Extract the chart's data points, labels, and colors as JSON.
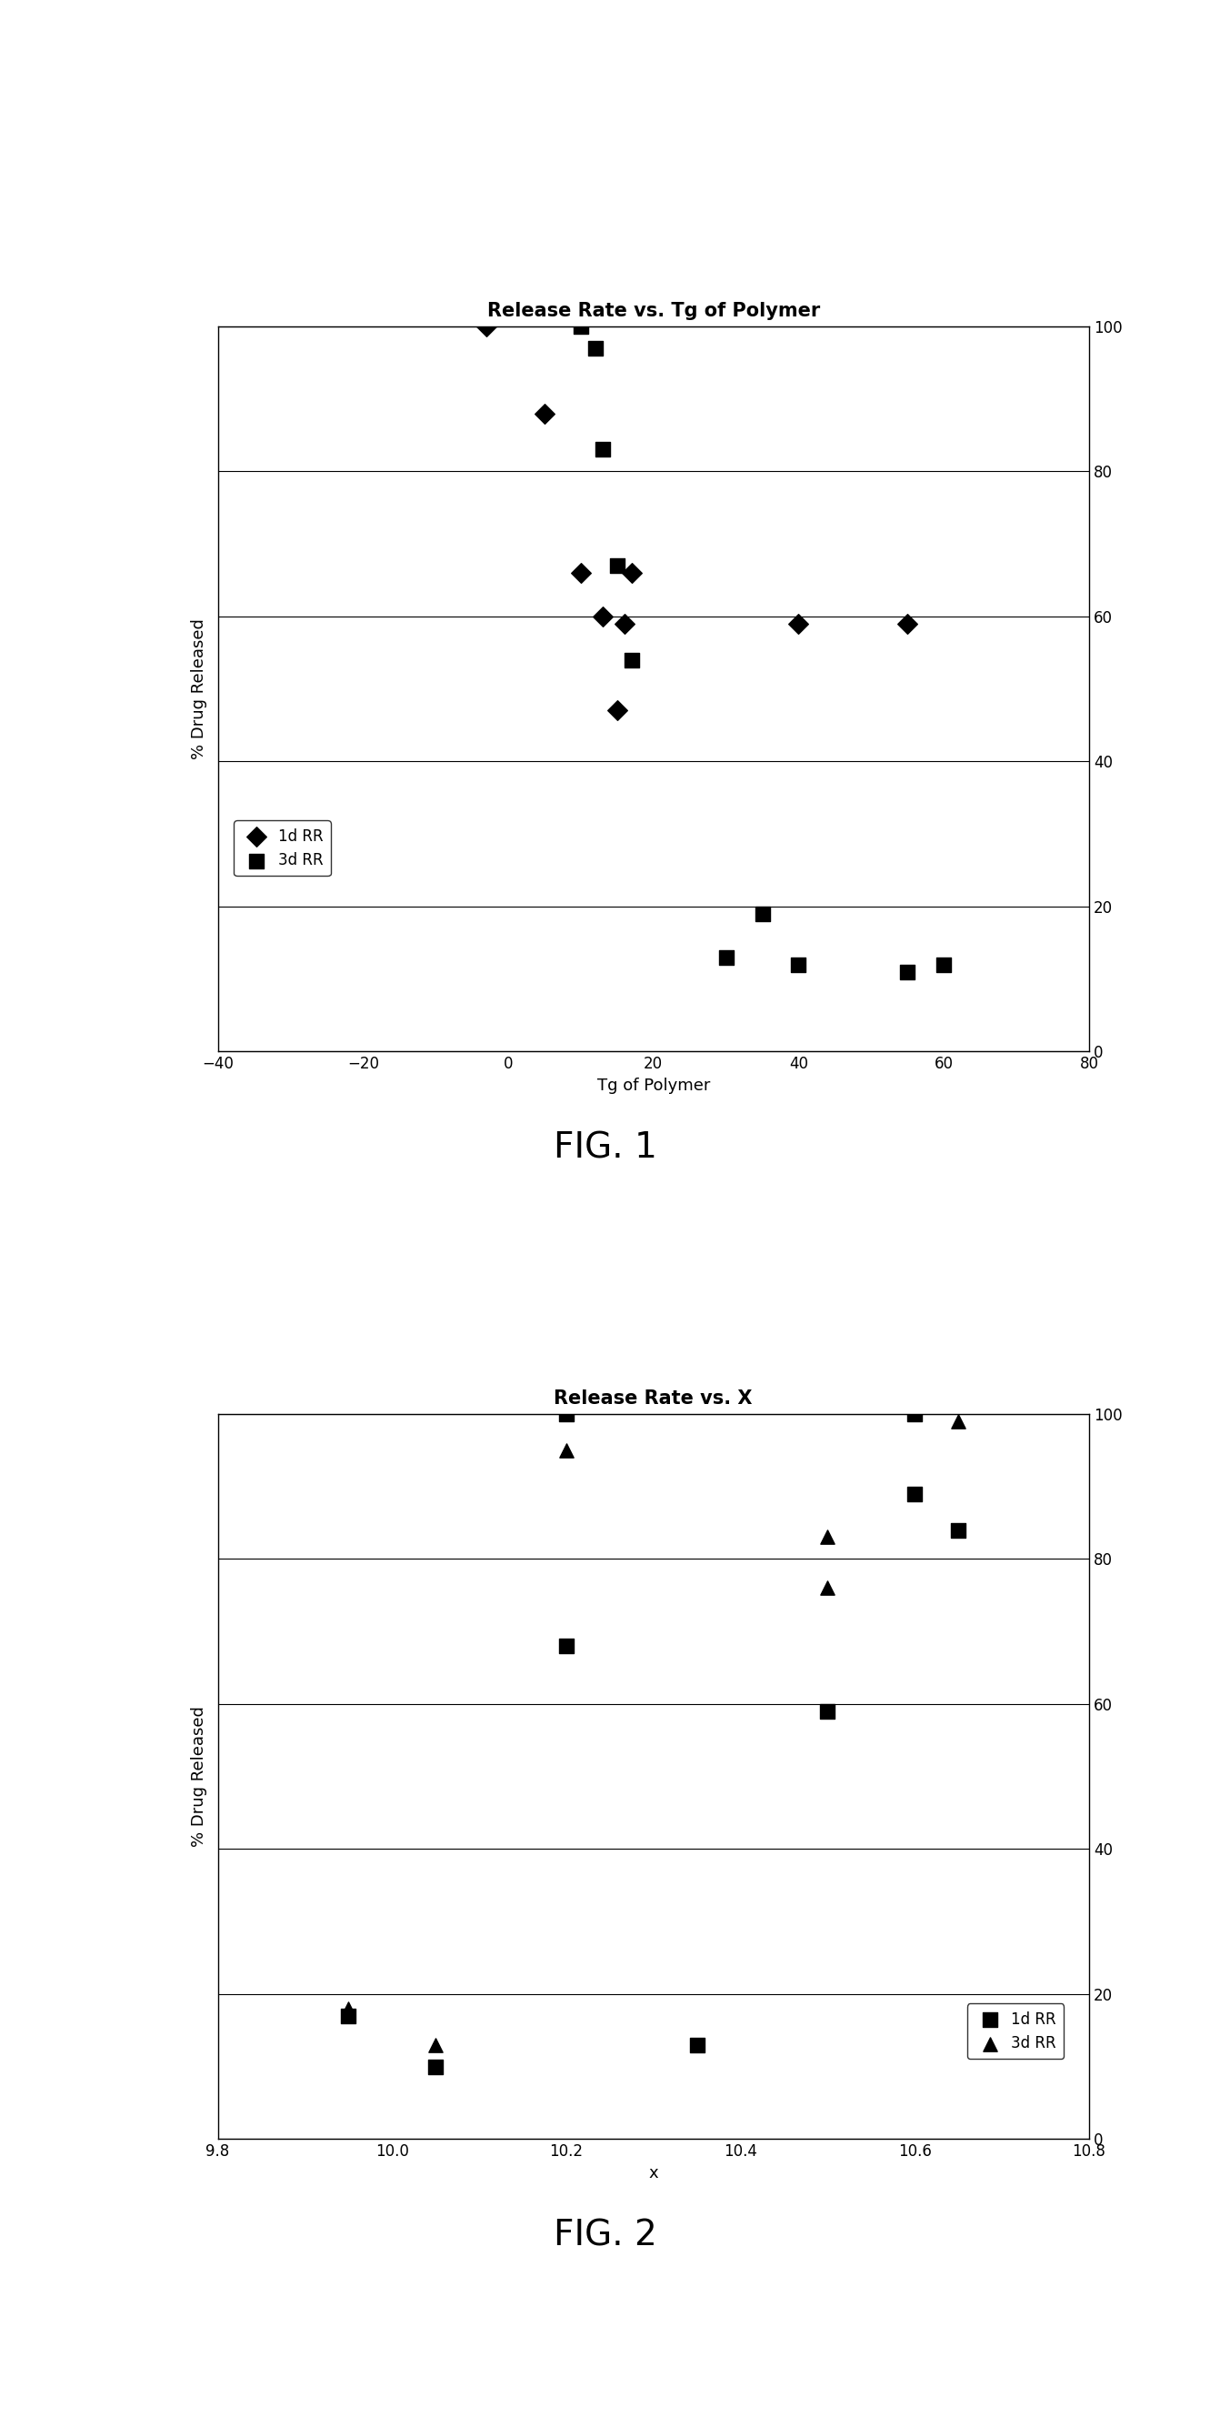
{
  "fig1": {
    "title": "Release Rate vs. Tg of Polymer",
    "xlabel": "Tg of Polymer",
    "ylabel": "% Drug Released",
    "xlim": [
      -40,
      80
    ],
    "ylim": [
      0,
      100
    ],
    "xticks": [
      -40,
      -20,
      0,
      20,
      40,
      60,
      80
    ],
    "yticks": [
      0,
      20,
      40,
      60,
      80,
      100
    ],
    "series1d": {
      "label": "1d RR",
      "marker": "D",
      "x": [
        -3,
        5,
        10,
        13,
        15,
        16,
        17,
        40,
        55
      ],
      "y": [
        100,
        88,
        66,
        60,
        47,
        59,
        66,
        59,
        59
      ]
    },
    "series3d": {
      "label": "3d RR",
      "marker": "s",
      "x": [
        10,
        12,
        13,
        15,
        17,
        30,
        35,
        40,
        55,
        60
      ],
      "y": [
        100,
        97,
        83,
        67,
        54,
        13,
        19,
        12,
        11,
        12
      ]
    },
    "fig_label": "FIG. 1"
  },
  "fig2": {
    "title": "Release Rate vs. X",
    "xlabel": "x",
    "ylabel": "% Drug Released",
    "xlim": [
      9.8,
      10.8
    ],
    "ylim": [
      0,
      100
    ],
    "xticks": [
      9.8,
      10.0,
      10.2,
      10.4,
      10.6,
      10.8
    ],
    "yticks": [
      0,
      20,
      40,
      60,
      80,
      100
    ],
    "series1d": {
      "label": "1d RR",
      "marker": "s",
      "x": [
        9.95,
        10.05,
        10.2,
        10.2,
        10.35,
        10.5,
        10.6,
        10.6,
        10.65
      ],
      "y": [
        17,
        10,
        100,
        68,
        13,
        59,
        100,
        89,
        84
      ]
    },
    "series3d": {
      "label": "3d RR",
      "marker": "^",
      "x": [
        9.95,
        10.05,
        10.2,
        10.5,
        10.5,
        10.6,
        10.65
      ],
      "y": [
        18,
        13,
        95,
        83,
        76,
        100,
        99
      ]
    },
    "fig_label": "FIG. 2"
  },
  "marker_size": 11,
  "marker_color": "#000000",
  "font_color": "#000000",
  "bg_color": "#ffffff",
  "title_fontsize": 15,
  "label_fontsize": 13,
  "tick_fontsize": 12,
  "legend_fontsize": 12,
  "fig_label_fontsize": 28
}
